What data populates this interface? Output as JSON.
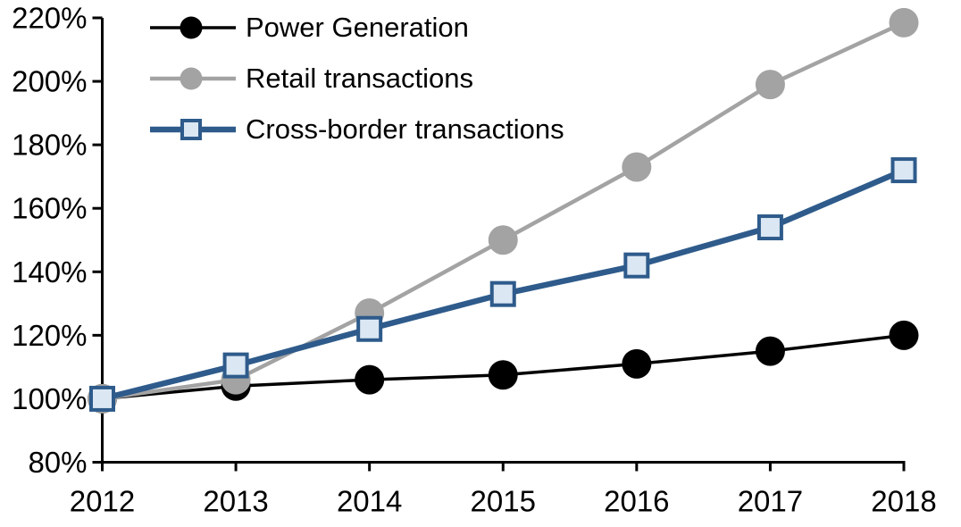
{
  "chart_data": {
    "type": "line",
    "title": "",
    "xlabel": "",
    "ylabel": "",
    "x_labels": [
      "2012",
      "2013",
      "2014",
      "2015",
      "2016",
      "2017",
      "2018"
    ],
    "ylim": [
      80,
      220
    ],
    "y_ticks": [
      {
        "value": 80,
        "label": "80%"
      },
      {
        "value": 100,
        "label": "100%"
      },
      {
        "value": 120,
        "label": "120%"
      },
      {
        "value": 140,
        "label": "140%"
      },
      {
        "value": 160,
        "label": "160%"
      },
      {
        "value": 180,
        "label": "180%"
      },
      {
        "value": 200,
        "label": "200%"
      },
      {
        "value": 220,
        "label": "220%"
      }
    ],
    "grid": false,
    "legend_position": "top-left",
    "axis_color": "#000000",
    "series": [
      {
        "name": "Power Generation",
        "marker": "circle",
        "color": "#000000",
        "marker_fill": "#000000",
        "line_width": 3.5,
        "values": [
          100,
          104,
          106,
          107.5,
          111,
          115,
          120
        ]
      },
      {
        "name": "Retail transactions",
        "marker": "circle",
        "color": "#A3A3A3",
        "marker_fill": "#A3A3A3",
        "line_width": 4.5,
        "values": [
          100,
          106,
          127,
          150,
          173,
          199,
          218.5
        ]
      },
      {
        "name": "Cross-border transactions",
        "marker": "square",
        "color": "#2E5B8B",
        "marker_fill": "#DBE7F3",
        "line_width": 6.5,
        "values": [
          100,
          110.5,
          122,
          133,
          142,
          154,
          172
        ]
      }
    ]
  }
}
